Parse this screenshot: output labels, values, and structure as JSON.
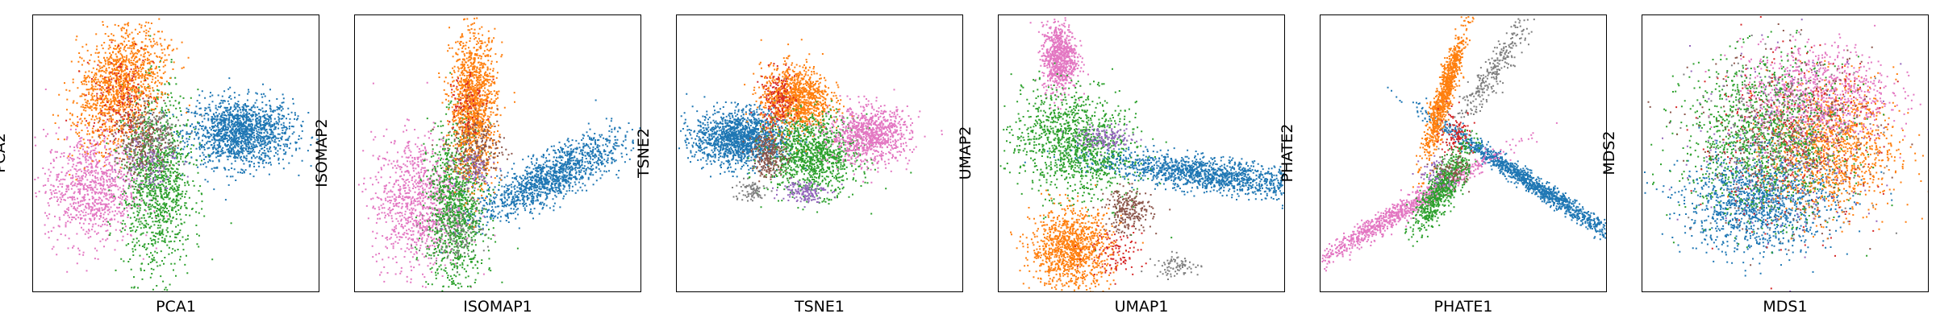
{
  "palette": {
    "blue": "#1f77b4",
    "orange": "#ff7f0e",
    "green": "#2ca02c",
    "red": "#d62728",
    "purple": "#9467bd",
    "brown": "#8c564b",
    "pink": "#e377c2",
    "gray": "#7f7f7f"
  },
  "chart_data": [
    {
      "type": "scatter",
      "xlabel": "PCA1",
      "ylabel": "PCA2",
      "ticks": "none",
      "grid": false,
      "legend": "none",
      "xlim": [
        0,
        100
      ],
      "ylim": [
        0,
        100
      ],
      "clusters": [
        {
          "color": "blue",
          "cx": 72,
          "cy": 58,
          "sx": 9,
          "sy": 6,
          "n": 1500,
          "angle": 0
        },
        {
          "color": "pink",
          "cx": 20,
          "cy": 38,
          "sx": 8,
          "sy": 10,
          "n": 900,
          "angle": 0
        },
        {
          "color": "green",
          "cx": 43,
          "cy": 40,
          "sx": 6,
          "sy": 16,
          "n": 1200,
          "angle": 0
        },
        {
          "color": "orange",
          "cx": 30,
          "cy": 75,
          "sx": 7,
          "sy": 11,
          "n": 1300,
          "angle": -25
        },
        {
          "color": "brown",
          "cx": 38,
          "cy": 55,
          "sx": 5,
          "sy": 6,
          "n": 300,
          "angle": 0
        },
        {
          "color": "red",
          "cx": 30,
          "cy": 70,
          "sx": 6,
          "sy": 8,
          "n": 150,
          "angle": 0
        },
        {
          "color": "purple",
          "cx": 40,
          "cy": 48,
          "sx": 5,
          "sy": 5,
          "n": 120,
          "angle": 0
        },
        {
          "color": "gray",
          "cx": 42,
          "cy": 58,
          "sx": 5,
          "sy": 5,
          "n": 100,
          "angle": 0
        }
      ]
    },
    {
      "type": "scatter",
      "xlabel": "ISOMAP1",
      "ylabel": "ISOMAP2",
      "ticks": "none",
      "grid": false,
      "legend": "none",
      "xlim": [
        0,
        100
      ],
      "ylim": [
        0,
        100
      ],
      "clusters": [
        {
          "color": "blue",
          "cx": 68,
          "cy": 42,
          "sx": 14,
          "sy": 4,
          "n": 1300,
          "angle": 28
        },
        {
          "color": "pink",
          "cx": 22,
          "cy": 33,
          "sx": 8,
          "sy": 12,
          "n": 1000,
          "angle": 0
        },
        {
          "color": "green",
          "cx": 35,
          "cy": 30,
          "sx": 5,
          "sy": 15,
          "n": 1100,
          "angle": 0
        },
        {
          "color": "orange",
          "cx": 41,
          "cy": 68,
          "sx": 4,
          "sy": 13,
          "n": 1300,
          "angle": 0
        },
        {
          "color": "brown",
          "cx": 42,
          "cy": 52,
          "sx": 5,
          "sy": 6,
          "n": 250,
          "angle": 0
        },
        {
          "color": "gray",
          "cx": 35,
          "cy": 22,
          "sx": 5,
          "sy": 5,
          "n": 120,
          "angle": 0
        },
        {
          "color": "red",
          "cx": 38,
          "cy": 70,
          "sx": 3,
          "sy": 6,
          "n": 80,
          "angle": 0
        },
        {
          "color": "purple",
          "cx": 40,
          "cy": 45,
          "sx": 4,
          "sy": 4,
          "n": 80,
          "angle": 0
        }
      ]
    },
    {
      "type": "scatter",
      "xlabel": "TSNE1",
      "ylabel": "TSNE2",
      "ticks": "none",
      "grid": false,
      "legend": "none",
      "xlim": [
        0,
        100
      ],
      "ylim": [
        0,
        100
      ],
      "clusters": [
        {
          "color": "blue",
          "cx": 22,
          "cy": 56,
          "sx": 8,
          "sy": 5,
          "n": 1500,
          "angle": 0
        },
        {
          "color": "orange",
          "cx": 41,
          "cy": 70,
          "sx": 6,
          "sy": 6,
          "n": 1100,
          "angle": 0
        },
        {
          "color": "green",
          "cx": 47,
          "cy": 50,
          "sx": 8,
          "sy": 7,
          "n": 1100,
          "angle": 0
        },
        {
          "color": "pink",
          "cx": 67,
          "cy": 57,
          "sx": 7,
          "sy": 5,
          "n": 900,
          "angle": 0
        },
        {
          "color": "brown",
          "cx": 32,
          "cy": 50,
          "sx": 3,
          "sy": 4,
          "n": 250,
          "angle": 0
        },
        {
          "color": "red",
          "cx": 35,
          "cy": 70,
          "sx": 3,
          "sy": 5,
          "n": 150,
          "angle": 0
        },
        {
          "color": "purple",
          "cx": 44,
          "cy": 37,
          "sx": 4,
          "sy": 2,
          "n": 150,
          "angle": 0
        },
        {
          "color": "gray",
          "cx": 25,
          "cy": 37,
          "sx": 3,
          "sy": 2,
          "n": 80,
          "angle": 0
        }
      ]
    },
    {
      "type": "scatter",
      "xlabel": "UMAP1",
      "ylabel": "UMAP2",
      "ticks": "none",
      "grid": false,
      "legend": "none",
      "xlim": [
        0,
        100
      ],
      "ylim": [
        0,
        100
      ],
      "clusters": [
        {
          "color": "blue",
          "cx": 72,
          "cy": 43,
          "sx": 19,
          "sy": 3,
          "n": 1400,
          "angle": -8
        },
        {
          "color": "pink",
          "cx": 21,
          "cy": 85,
          "sx": 3,
          "sy": 6,
          "n": 800,
          "angle": 0
        },
        {
          "color": "green",
          "cx": 26,
          "cy": 54,
          "sx": 11,
          "sy": 9,
          "n": 1200,
          "angle": -35
        },
        {
          "color": "orange",
          "cx": 25,
          "cy": 16,
          "sx": 7,
          "sy": 7,
          "n": 1100,
          "angle": 0
        },
        {
          "color": "brown",
          "cx": 45,
          "cy": 30,
          "sx": 4,
          "sy": 4,
          "n": 250,
          "angle": 0
        },
        {
          "color": "purple",
          "cx": 37,
          "cy": 56,
          "sx": 5,
          "sy": 2,
          "n": 150,
          "angle": 0
        },
        {
          "color": "gray",
          "cx": 62,
          "cy": 10,
          "sx": 4,
          "sy": 2,
          "n": 80,
          "angle": 0
        },
        {
          "color": "red",
          "cx": 40,
          "cy": 15,
          "sx": 5,
          "sy": 4,
          "n": 100,
          "angle": 0
        }
      ]
    },
    {
      "type": "scatter",
      "xlabel": "PHATE1",
      "ylabel": "PHATE2",
      "ticks": "none",
      "grid": false,
      "legend": "none",
      "xlim": [
        0,
        100
      ],
      "ylim": [
        0,
        100
      ],
      "clusters": [
        {
          "color": "blue",
          "cx": 73,
          "cy": 40,
          "sx": 20,
          "sy": 1.5,
          "n": 1300,
          "angle": -34
        },
        {
          "color": "pink",
          "cx": 25,
          "cy": 28,
          "sx": 20,
          "sy": 1.8,
          "n": 1000,
          "angle": 32
        },
        {
          "color": "orange",
          "cx": 43,
          "cy": 72,
          "sx": 12,
          "sy": 1.5,
          "n": 900,
          "angle": 74
        },
        {
          "color": "green",
          "cx": 42,
          "cy": 38,
          "sx": 9,
          "sy": 2.5,
          "n": 700,
          "angle": 60
        },
        {
          "color": "gray",
          "cx": 60,
          "cy": 80,
          "sx": 14,
          "sy": 2,
          "n": 300,
          "angle": 58
        },
        {
          "color": "red",
          "cx": 47,
          "cy": 58,
          "sx": 3,
          "sy": 4,
          "n": 100,
          "angle": 0
        },
        {
          "color": "purple",
          "cx": 40,
          "cy": 43,
          "sx": 3,
          "sy": 3,
          "n": 60,
          "angle": 0
        },
        {
          "color": "brown",
          "cx": 46,
          "cy": 44,
          "sx": 3,
          "sy": 3,
          "n": 80,
          "angle": 0
        }
      ]
    },
    {
      "type": "scatter",
      "xlabel": "MDS1",
      "ylabel": "MDS2",
      "ticks": "none",
      "grid": false,
      "legend": "none",
      "xlim": [
        0,
        100
      ],
      "ylim": [
        0,
        100
      ],
      "clusters": [
        {
          "color": "blue",
          "cx": 40,
          "cy": 33,
          "sx": 13,
          "sy": 9,
          "n": 1300,
          "angle": 0
        },
        {
          "color": "orange",
          "cx": 66,
          "cy": 53,
          "sx": 11,
          "sy": 12,
          "n": 1200,
          "angle": 0
        },
        {
          "color": "pink",
          "cx": 60,
          "cy": 72,
          "sx": 13,
          "sy": 9,
          "n": 900,
          "angle": 0
        },
        {
          "color": "green",
          "cx": 42,
          "cy": 56,
          "sx": 14,
          "sy": 14,
          "n": 1200,
          "angle": 0
        },
        {
          "color": "red",
          "cx": 50,
          "cy": 55,
          "sx": 16,
          "sy": 16,
          "n": 300,
          "angle": 0
        },
        {
          "color": "purple",
          "cx": 50,
          "cy": 55,
          "sx": 16,
          "sy": 16,
          "n": 250,
          "angle": 0
        },
        {
          "color": "brown",
          "cx": 50,
          "cy": 55,
          "sx": 16,
          "sy": 16,
          "n": 300,
          "angle": 0
        },
        {
          "color": "gray",
          "cx": 50,
          "cy": 55,
          "sx": 16,
          "sy": 16,
          "n": 200,
          "angle": 0
        }
      ]
    }
  ]
}
